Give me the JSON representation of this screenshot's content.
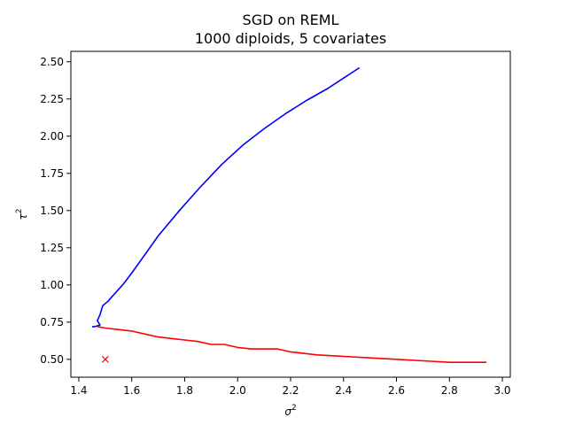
{
  "chart_data": {
    "type": "line",
    "title": "SGD on REML",
    "subtitle": "1000 diploids, 5 covariates",
    "xlabel": "σ",
    "xlabel_sup": "2",
    "ylabel": "τ",
    "ylabel_sup": "2",
    "xlim": [
      1.37,
      3.03
    ],
    "ylim": [
      0.38,
      2.57
    ],
    "x_ticks": [
      "1.4",
      "1.6",
      "1.8",
      "2.0",
      "2.2",
      "2.4",
      "2.6",
      "2.8",
      "3.0"
    ],
    "y_ticks": [
      "0.50",
      "0.75",
      "1.00",
      "1.25",
      "1.50",
      "1.75",
      "2.00",
      "2.25",
      "2.50"
    ],
    "grid": false,
    "series": [
      {
        "color": "#0000ff",
        "x": [
          2.46,
          2.4,
          2.34,
          2.26,
          2.18,
          2.1,
          2.02,
          1.94,
          1.86,
          1.78,
          1.7,
          1.64,
          1.6,
          1.57,
          1.54,
          1.51,
          1.49,
          1.48,
          1.47,
          1.48,
          1.46,
          1.45
        ],
        "y": [
          2.46,
          2.39,
          2.32,
          2.24,
          2.15,
          2.05,
          1.94,
          1.81,
          1.66,
          1.5,
          1.33,
          1.18,
          1.08,
          1.01,
          0.95,
          0.89,
          0.86,
          0.8,
          0.76,
          0.73,
          0.72,
          0.72
        ]
      },
      {
        "color": "#ff0000",
        "x": [
          2.94,
          2.88,
          2.8,
          2.7,
          2.6,
          2.5,
          2.4,
          2.3,
          2.2,
          2.15,
          2.05,
          2.0,
          1.95,
          1.9,
          1.85,
          1.8,
          1.75,
          1.7,
          1.65,
          1.6,
          1.55,
          1.5,
          1.47
        ],
        "y": [
          0.48,
          0.48,
          0.48,
          0.49,
          0.5,
          0.51,
          0.52,
          0.53,
          0.55,
          0.57,
          0.57,
          0.58,
          0.6,
          0.6,
          0.62,
          0.63,
          0.64,
          0.65,
          0.67,
          0.69,
          0.7,
          0.71,
          0.72
        ]
      }
    ],
    "markers": [
      {
        "x": 1.5,
        "y": 0.5,
        "symbol": "x",
        "color": "#ff0000"
      }
    ]
  }
}
